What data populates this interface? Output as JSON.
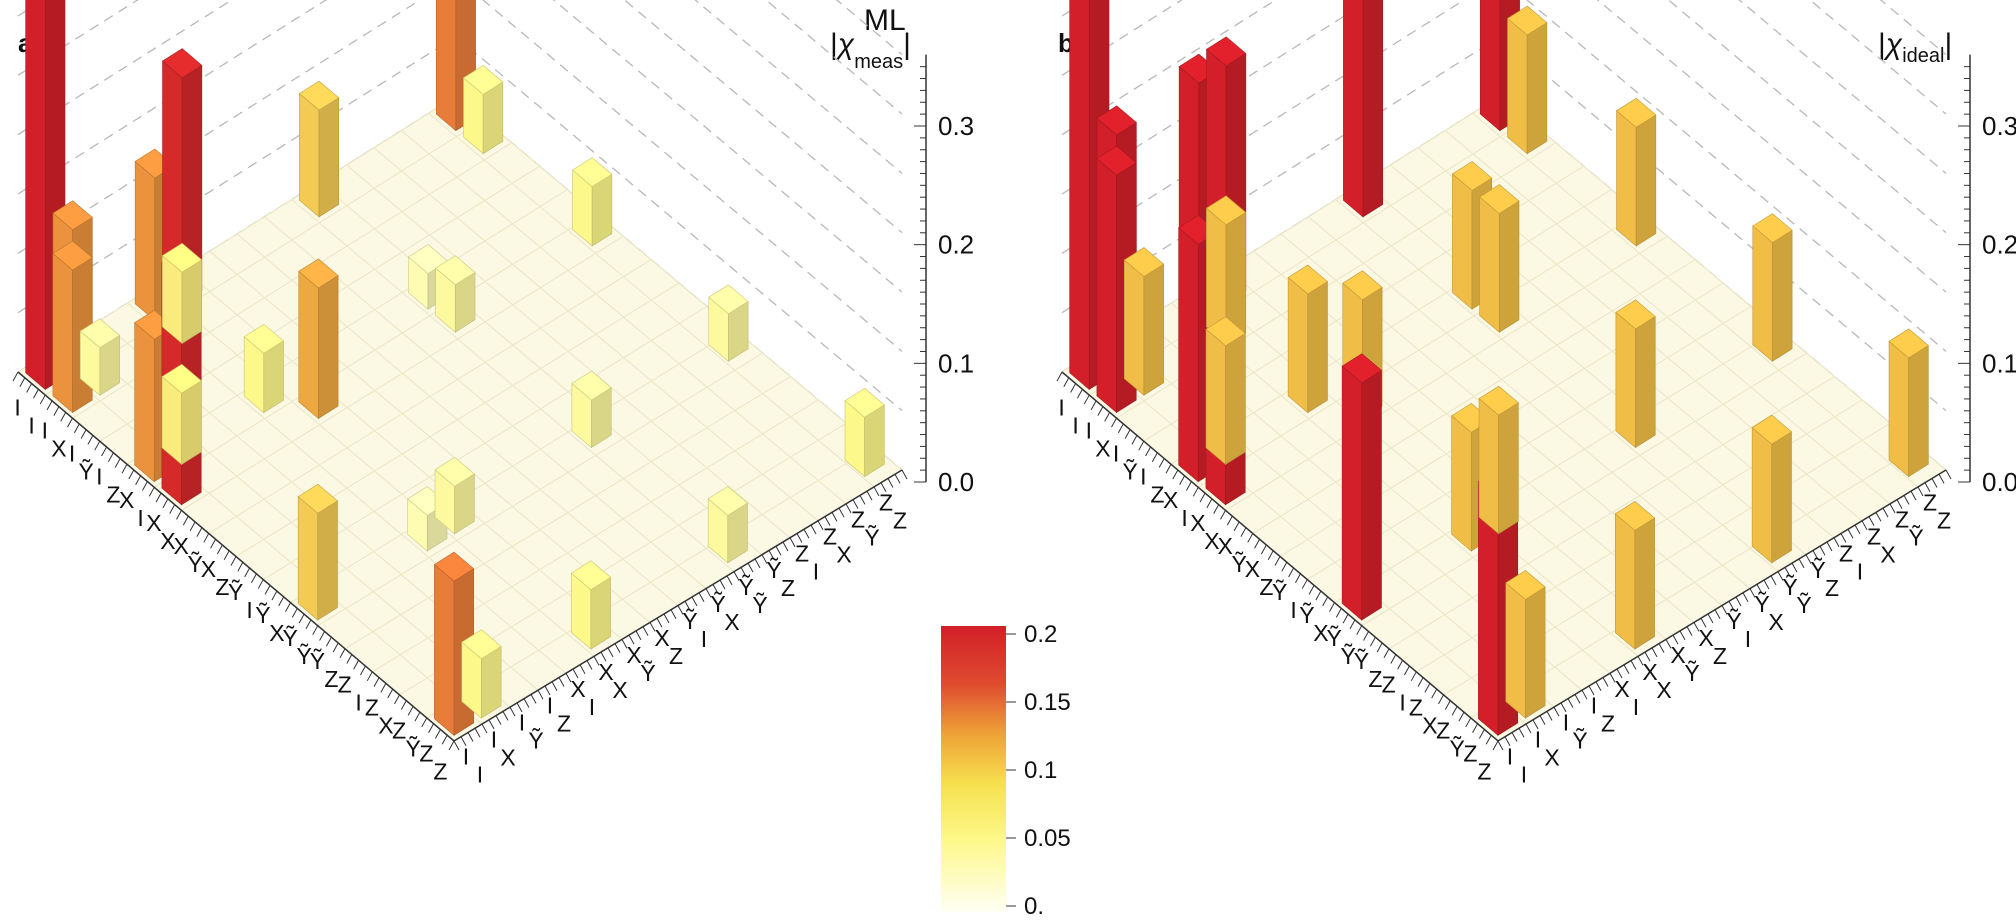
{
  "panels": [
    {
      "label": "a",
      "title_symbol": "χ",
      "title_superscript": "ML",
      "title_subscript": "meas"
    },
    {
      "label": "b",
      "title_symbol": "χ",
      "title_subscript": "ideal"
    }
  ],
  "colors": {
    "scale": [
      "#fffff0",
      "#fdf87a",
      "#f0c94a",
      "#ea8a2e",
      "#d7282f",
      "#d01f28"
    ],
    "grid": "#b8b8b8",
    "floor": "#fbf8e4"
  },
  "chart_data": [
    {
      "type": "3d-bar",
      "panel": "a",
      "title": "|χ_meas^ML|",
      "zlim": [
        0,
        0.35
      ],
      "zticks": [
        "0.0",
        "0.1",
        "0.2",
        "0.3"
      ],
      "categories": [
        [
          "I",
          "I"
        ],
        [
          "I",
          "X"
        ],
        [
          "I",
          "Ỹ"
        ],
        [
          "I",
          "Z"
        ],
        [
          "X",
          "I"
        ],
        [
          "X",
          "X"
        ],
        [
          "X",
          "Ỹ"
        ],
        [
          "X",
          "Z"
        ],
        [
          "Ỹ",
          "I"
        ],
        [
          "Ỹ",
          "X"
        ],
        [
          "Ỹ",
          "Ỹ"
        ],
        [
          "Ỹ",
          "Z"
        ],
        [
          "Z",
          "I"
        ],
        [
          "Z",
          "X"
        ],
        [
          "Z",
          "Ỹ"
        ],
        [
          "Z",
          "Z"
        ]
      ],
      "bars": [
        {
          "row": 0,
          "col": 0,
          "value": 0.355
        },
        {
          "row": 0,
          "col": 1,
          "value": 0.12
        },
        {
          "row": 1,
          "col": 0,
          "value": 0.12
        },
        {
          "row": 1,
          "col": 1,
          "value": 0.04
        },
        {
          "row": 0,
          "col": 5,
          "value": 0.19
        },
        {
          "row": 5,
          "col": 0,
          "value": 0.19
        },
        {
          "row": 0,
          "col": 4,
          "value": 0.12
        },
        {
          "row": 4,
          "col": 0,
          "value": 0.12
        },
        {
          "row": 1,
          "col": 4,
          "value": 0.06
        },
        {
          "row": 4,
          "col": 1,
          "value": 0.06
        },
        {
          "row": 5,
          "col": 5,
          "value": 0.11
        },
        {
          "row": 4,
          "col": 4,
          "value": 0.05
        },
        {
          "row": 0,
          "col": 15,
          "value": 0.13
        },
        {
          "row": 15,
          "col": 0,
          "value": 0.13
        },
        {
          "row": 0,
          "col": 10,
          "value": 0.09
        },
        {
          "row": 10,
          "col": 0,
          "value": 0.09
        },
        {
          "row": 1,
          "col": 15,
          "value": 0.05
        },
        {
          "row": 15,
          "col": 1,
          "value": 0.05
        },
        {
          "row": 5,
          "col": 15,
          "value": 0.05
        },
        {
          "row": 15,
          "col": 5,
          "value": 0.05
        },
        {
          "row": 5,
          "col": 10,
          "value": 0.04
        },
        {
          "row": 10,
          "col": 5,
          "value": 0.04
        },
        {
          "row": 15,
          "col": 15,
          "value": 0.05
        },
        {
          "row": 10,
          "col": 10,
          "value": 0.04
        },
        {
          "row": 10,
          "col": 15,
          "value": 0.04
        },
        {
          "row": 15,
          "col": 10,
          "value": 0.04
        },
        {
          "row": 4,
          "col": 10,
          "value": 0.03
        },
        {
          "row": 10,
          "col": 4,
          "value": 0.03
        }
      ]
    },
    {
      "type": "3d-bar",
      "panel": "b",
      "title": "|χ_ideal|",
      "zlim": [
        0,
        0.35
      ],
      "zticks": [
        "0.0",
        "0.1",
        "0.2",
        "0.3"
      ],
      "categories": [
        [
          "I",
          "I"
        ],
        [
          "I",
          "X"
        ],
        [
          "I",
          "Ỹ"
        ],
        [
          "I",
          "Z"
        ],
        [
          "X",
          "I"
        ],
        [
          "X",
          "X"
        ],
        [
          "X",
          "Ỹ"
        ],
        [
          "X",
          "Z"
        ],
        [
          "Ỹ",
          "I"
        ],
        [
          "Ỹ",
          "X"
        ],
        [
          "Ỹ",
          "Ỹ"
        ],
        [
          "Ỹ",
          "Z"
        ],
        [
          "Z",
          "I"
        ],
        [
          "Z",
          "X"
        ],
        [
          "Z",
          "Ỹ"
        ],
        [
          "Z",
          "Z"
        ]
      ],
      "bars": [
        {
          "row": 0,
          "col": 0,
          "value": 0.35
        },
        {
          "row": 0,
          "col": 1,
          "value": 0.2
        },
        {
          "row": 1,
          "col": 0,
          "value": 0.2
        },
        {
          "row": 1,
          "col": 1,
          "value": 0.1
        },
        {
          "row": 0,
          "col": 5,
          "value": 0.2
        },
        {
          "row": 5,
          "col": 0,
          "value": 0.2
        },
        {
          "row": 0,
          "col": 4,
          "value": 0.2
        },
        {
          "row": 4,
          "col": 0,
          "value": 0.2
        },
        {
          "row": 1,
          "col": 4,
          "value": 0.1
        },
        {
          "row": 4,
          "col": 1,
          "value": 0.1
        },
        {
          "row": 5,
          "col": 5,
          "value": 0.1
        },
        {
          "row": 4,
          "col": 4,
          "value": 0.1
        },
        {
          "row": 0,
          "col": 15,
          "value": 0.2
        },
        {
          "row": 15,
          "col": 0,
          "value": 0.2
        },
        {
          "row": 0,
          "col": 10,
          "value": 0.2
        },
        {
          "row": 10,
          "col": 0,
          "value": 0.2
        },
        {
          "row": 1,
          "col": 15,
          "value": 0.1
        },
        {
          "row": 15,
          "col": 1,
          "value": 0.1
        },
        {
          "row": 5,
          "col": 15,
          "value": 0.1
        },
        {
          "row": 15,
          "col": 5,
          "value": 0.1
        },
        {
          "row": 5,
          "col": 10,
          "value": 0.1
        },
        {
          "row": 10,
          "col": 5,
          "value": 0.1
        },
        {
          "row": 15,
          "col": 15,
          "value": 0.1
        },
        {
          "row": 10,
          "col": 10,
          "value": 0.1
        },
        {
          "row": 10,
          "col": 15,
          "value": 0.1
        },
        {
          "row": 15,
          "col": 10,
          "value": 0.1
        },
        {
          "row": 4,
          "col": 10,
          "value": 0.1
        },
        {
          "row": 10,
          "col": 4,
          "value": 0.1
        }
      ]
    }
  ],
  "colorbar": {
    "ticks": [
      "0.2",
      "0.15",
      "0.1",
      "0.05",
      "0."
    ],
    "range": [
      0,
      0.2
    ]
  }
}
